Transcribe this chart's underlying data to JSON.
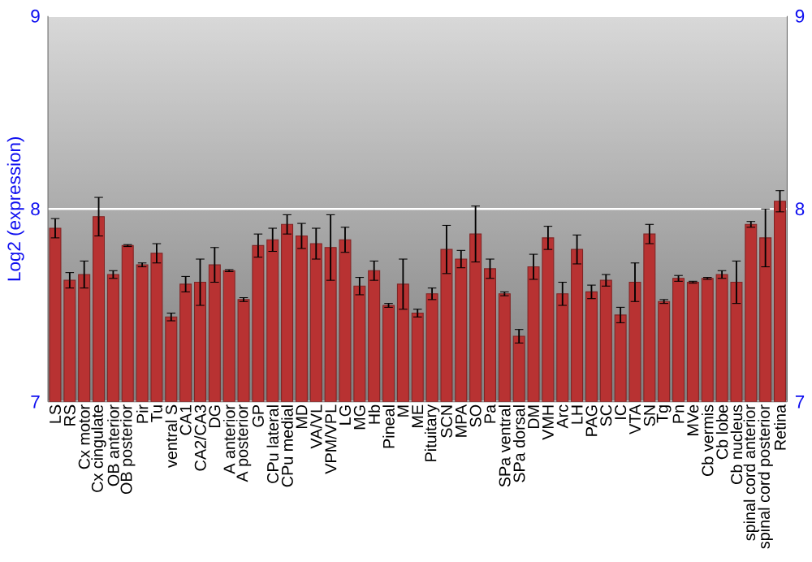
{
  "chart_data": {
    "type": "bar",
    "ylabel": "Log2 (expression)",
    "categories": [
      "LS",
      "RS",
      "Cx motor",
      "Cx cingulate",
      "OB anterior",
      "OB posterior",
      "Pir",
      "Tu",
      "ventral S",
      "CA1",
      "CA2/CA3",
      "DG",
      "A anterior",
      "A posterior",
      "GP",
      "CPu lateral",
      "CPu medial",
      "MD",
      "VA/VL",
      "VPM/VPL",
      "LG",
      "MG",
      "Hb",
      "Pineal",
      "M",
      "ME",
      "Pituitary",
      "SCN",
      "MPA",
      "SO",
      "Pa",
      "SPa ventral",
      "SPa dorsal",
      "DM",
      "VMH",
      "Arc",
      "LH",
      "PAG",
      "SC",
      "IC",
      "VTA",
      "SN",
      "Tg",
      "Pn",
      "MVe",
      "Cb vermis",
      "Cb lobe",
      "Cb nucleus",
      "spinal cord anterior",
      "spinal cord posterior",
      "Retina"
    ],
    "values": [
      7.9,
      7.63,
      7.66,
      7.96,
      7.66,
      7.81,
      7.71,
      7.77,
      7.44,
      7.61,
      7.62,
      7.71,
      7.68,
      7.53,
      7.81,
      7.84,
      7.92,
      7.86,
      7.82,
      7.8,
      7.84,
      7.6,
      7.68,
      7.5,
      7.61,
      7.46,
      7.56,
      7.79,
      7.74,
      7.87,
      7.69,
      7.56,
      7.34,
      7.7,
      7.85,
      7.56,
      7.79,
      7.57,
      7.63,
      7.45,
      7.62,
      7.87,
      7.52,
      7.64,
      7.62,
      7.64,
      7.66,
      7.62,
      7.92,
      7.85,
      8.04
    ],
    "errors": [
      0.05,
      0.04,
      0.07,
      0.1,
      0.02,
      0.005,
      0.01,
      0.05,
      0.02,
      0.04,
      0.12,
      0.09,
      0.005,
      0.01,
      0.06,
      0.06,
      0.05,
      0.065,
      0.08,
      0.17,
      0.065,
      0.045,
      0.05,
      0.01,
      0.13,
      0.02,
      0.03,
      0.125,
      0.045,
      0.145,
      0.05,
      0.01,
      0.035,
      0.065,
      0.06,
      0.06,
      0.075,
      0.035,
      0.03,
      0.04,
      0.1,
      0.05,
      0.01,
      0.015,
      0.005,
      0.005,
      0.02,
      0.11,
      0.015,
      0.15,
      0.055
    ],
    "color": "#b83232",
    "ylim": [
      7,
      9
    ],
    "yticks": [
      7,
      8,
      9
    ],
    "y2lim": [
      7,
      9
    ],
    "y2ticks": [
      7,
      8,
      9
    ],
    "grid": "y"
  }
}
